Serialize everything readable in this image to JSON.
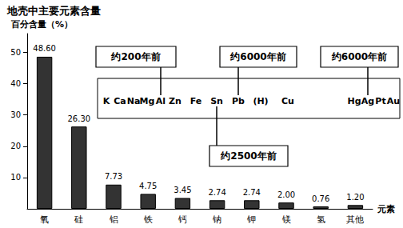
{
  "chart_data": {
    "type": "bar",
    "title": "地壳中主要元素含量",
    "y_label": "百分含量（%）",
    "x_label": "元素",
    "categories": [
      "氧",
      "硅",
      "铝",
      "铁",
      "钙",
      "钠",
      "钾",
      "镁",
      "氢",
      "其他"
    ],
    "values": [
      48.6,
      26.3,
      7.73,
      4.75,
      3.45,
      2.74,
      2.74,
      2.0,
      0.76,
      1.2
    ],
    "value_labels": [
      "48.60",
      "26.30",
      "7.73",
      "4.75",
      "3.45",
      "2.74",
      "2.74",
      "2.00",
      "0.76",
      "1.20"
    ],
    "color": "#333333",
    "ylim": [
      0,
      56
    ],
    "yticks": [
      10,
      20,
      30,
      40,
      50
    ],
    "grid": false,
    "data_labels": true,
    "annotations": {
      "sequence": [
        "K",
        "Ca",
        "Na",
        "Mg",
        "Al",
        "Zn",
        "Fe",
        "Sn",
        "Pb",
        "(H)",
        "Cu",
        "Hg",
        "Ag",
        "Pt",
        "Au"
      ],
      "callouts": [
        {
          "text": "约200年前",
          "target": "Al",
          "side": "above"
        },
        {
          "text": "约6000年前",
          "target": "Pb",
          "side": "above"
        },
        {
          "text": "约6000年前",
          "target": "Ag",
          "side": "above"
        },
        {
          "text": "约2500年前",
          "target": "Sn",
          "side": "below"
        }
      ]
    }
  }
}
